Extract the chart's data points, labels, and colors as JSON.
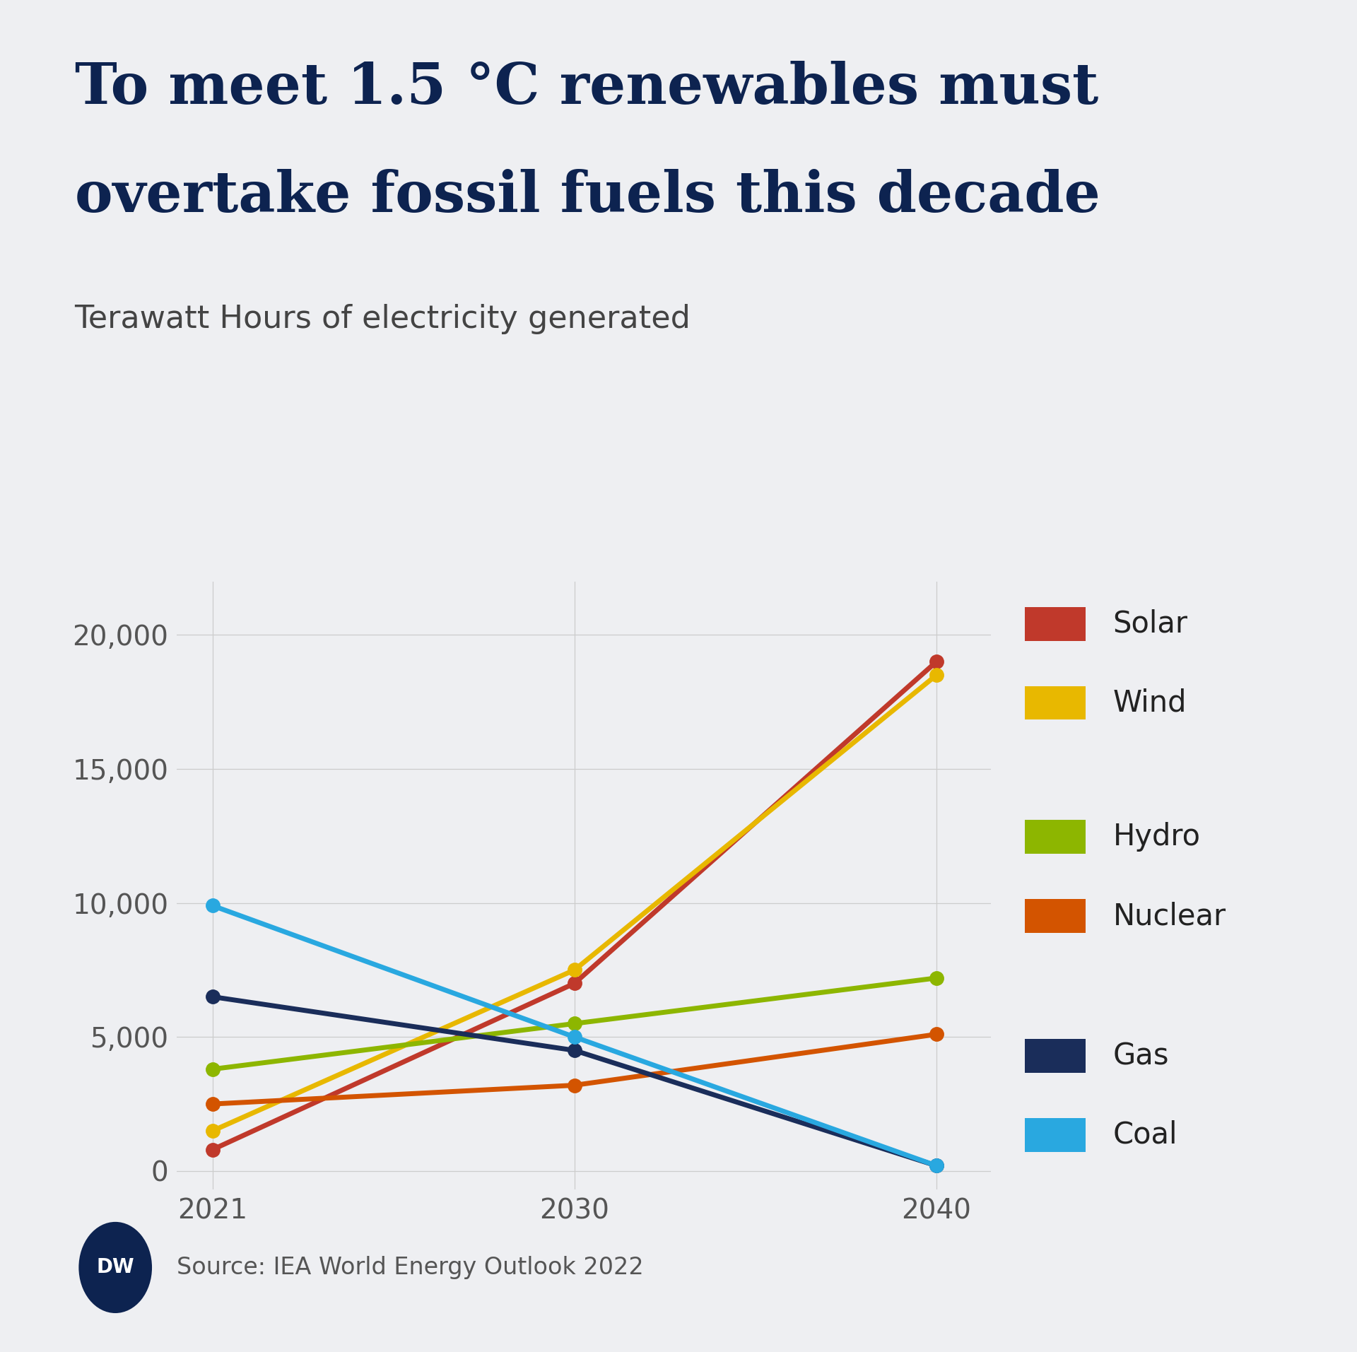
{
  "title_line1": "To meet 1.5 °C renewables must",
  "title_line2": "overtake fossil fuels this decade",
  "subtitle": "Terawatt Hours of electricity generated",
  "source": "Source: IEA World Energy Outlook 2022",
  "years": [
    2021,
    2030,
    2040
  ],
  "series": [
    {
      "name": "Solar",
      "color": "#c0392b",
      "values": [
        800,
        7000,
        19000
      ]
    },
    {
      "name": "Wind",
      "color": "#e8b800",
      "values": [
        1500,
        7500,
        18500
      ]
    },
    {
      "name": "Hydro",
      "color": "#8db600",
      "values": [
        3800,
        5500,
        7200
      ]
    },
    {
      "name": "Nuclear",
      "color": "#d35400",
      "values": [
        2500,
        3200,
        5100
      ]
    },
    {
      "name": "Gas",
      "color": "#1a2d5a",
      "values": [
        6500,
        4500,
        200
      ]
    },
    {
      "name": "Coal",
      "color": "#29a8e0",
      "values": [
        9900,
        5000,
        200
      ]
    }
  ],
  "ylim": [
    -700,
    22000
  ],
  "yticks": [
    0,
    5000,
    10000,
    15000,
    20000
  ],
  "ytick_labels": [
    "0",
    "5,000",
    "10,000",
    "15,000",
    "20,000"
  ],
  "xtick_labels": [
    "2021",
    "2030",
    "2040"
  ],
  "background_color": "#eeeff2",
  "title_color": "#0d2350",
  "subtitle_color": "#444444",
  "axis_label_color": "#555555",
  "grid_color": "#cccccc",
  "source_color": "#555555",
  "legend_items": [
    {
      "name": "Solar",
      "color": "#c0392b",
      "group": 0
    },
    {
      "name": "Wind",
      "color": "#e8b800",
      "group": 0
    },
    {
      "name": "Hydro",
      "color": "#8db600",
      "group": 1
    },
    {
      "name": "Nuclear",
      "color": "#d35400",
      "group": 1
    },
    {
      "name": "Gas",
      "color": "#1a2d5a",
      "group": 2
    },
    {
      "name": "Coal",
      "color": "#29a8e0",
      "group": 2
    }
  ],
  "title_fontsize": 58,
  "subtitle_fontsize": 32,
  "source_fontsize": 24,
  "legend_fontsize": 30,
  "tick_fontsize": 28,
  "line_width": 5.0,
  "marker_size": 14
}
